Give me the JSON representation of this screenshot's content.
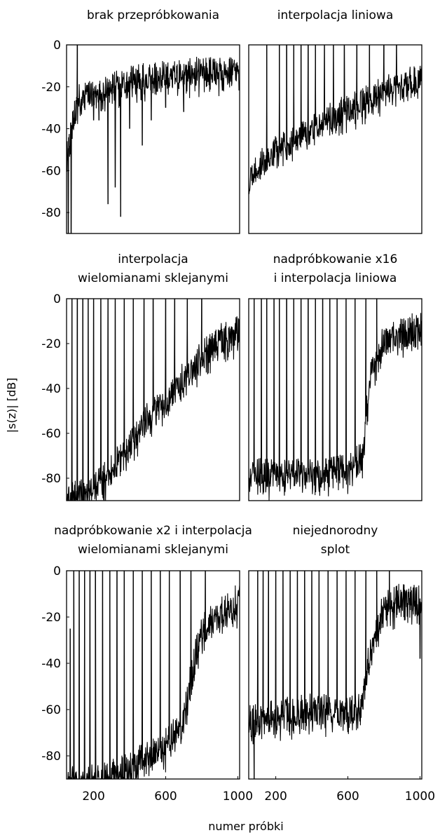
{
  "figure": {
    "ylabel": "|s(z)| [dB]",
    "xlabel": "numer próbki"
  },
  "chart_data": [
    {
      "type": "line",
      "title_lines": [
        "brak przepróbkowania"
      ],
      "ylim": [
        -90,
        0
      ],
      "yticks": [
        0,
        -20,
        -40,
        -60,
        -80
      ],
      "xlim": [
        50,
        1010
      ],
      "xticks": [],
      "envelope_x": [
        50,
        80,
        120,
        200,
        300,
        400,
        500,
        600,
        700,
        800,
        900,
        1010
      ],
      "envelope_y": [
        -55,
        -38,
        -25,
        -22,
        -20,
        -17,
        -15,
        -14,
        -14,
        -12,
        -12,
        -12
      ],
      "spikes": [
        {
          "x": 60,
          "y": -90
        },
        {
          "x": 75,
          "y": -90
        },
        {
          "x": 90,
          "y": -38
        },
        {
          "x": 110,
          "y": 0
        },
        {
          "x": 150,
          "y": -30
        },
        {
          "x": 200,
          "y": -36
        },
        {
          "x": 230,
          "y": -36
        },
        {
          "x": 280,
          "y": -76
        },
        {
          "x": 320,
          "y": -68
        },
        {
          "x": 350,
          "y": -82
        },
        {
          "x": 400,
          "y": -40
        },
        {
          "x": 470,
          "y": -48
        },
        {
          "x": 520,
          "y": -36
        },
        {
          "x": 600,
          "y": -30
        },
        {
          "x": 700,
          "y": -32
        }
      ]
    },
    {
      "type": "line",
      "title_lines": [
        "interpolacja liniowa"
      ],
      "ylim": [
        -90,
        0
      ],
      "yticks": [],
      "xlim": [
        50,
        1010
      ],
      "xticks": [],
      "envelope_x": [
        50,
        100,
        200,
        300,
        400,
        500,
        600,
        700,
        800,
        900,
        1010
      ],
      "envelope_y": [
        -63,
        -57,
        -50,
        -45,
        -40,
        -34,
        -30,
        -26,
        -22,
        -18,
        -15
      ],
      "spikes": [
        {
          "x": 150,
          "y": 0
        },
        {
          "x": 220,
          "y": 0
        },
        {
          "x": 260,
          "y": 0
        },
        {
          "x": 300,
          "y": 0
        },
        {
          "x": 340,
          "y": 0
        },
        {
          "x": 380,
          "y": 0
        },
        {
          "x": 420,
          "y": 0
        },
        {
          "x": 470,
          "y": 0
        },
        {
          "x": 520,
          "y": 0
        },
        {
          "x": 580,
          "y": 0
        },
        {
          "x": 650,
          "y": 0
        },
        {
          "x": 720,
          "y": 0
        },
        {
          "x": 800,
          "y": 0
        },
        {
          "x": 870,
          "y": 0
        }
      ]
    },
    {
      "type": "line",
      "title_lines": [
        "interpolacja",
        "wielomianami sklejanymi"
      ],
      "ylim": [
        -90,
        0
      ],
      "yticks": [
        0,
        -20,
        -40,
        -60,
        -80
      ],
      "xlim": [
        50,
        1010
      ],
      "xticks": [],
      "envelope_x": [
        50,
        100,
        200,
        300,
        400,
        500,
        600,
        700,
        800,
        900,
        1010
      ],
      "envelope_y": [
        -90,
        -88,
        -85,
        -75,
        -65,
        -52,
        -45,
        -35,
        -25,
        -18,
        -14
      ],
      "spikes": [
        {
          "x": 60,
          "y": -90
        },
        {
          "x": 80,
          "y": 0
        },
        {
          "x": 110,
          "y": 0
        },
        {
          "x": 140,
          "y": 0
        },
        {
          "x": 170,
          "y": 0
        },
        {
          "x": 200,
          "y": 0
        },
        {
          "x": 240,
          "y": 0
        },
        {
          "x": 280,
          "y": 0
        },
        {
          "x": 320,
          "y": 0
        },
        {
          "x": 370,
          "y": 0
        },
        {
          "x": 420,
          "y": 0
        },
        {
          "x": 480,
          "y": 0
        },
        {
          "x": 530,
          "y": 0
        },
        {
          "x": 600,
          "y": 0
        },
        {
          "x": 650,
          "y": 0
        },
        {
          "x": 720,
          "y": 0
        },
        {
          "x": 800,
          "y": 0
        }
      ]
    },
    {
      "type": "line",
      "title_lines": [
        "nadpróbkowanie x16",
        "i interpolacja liniowa"
      ],
      "ylim": [
        -90,
        0
      ],
      "yticks": [],
      "xlim": [
        50,
        1010
      ],
      "xticks": [],
      "envelope_x": [
        50,
        200,
        400,
        600,
        680,
        720,
        800,
        900,
        1010
      ],
      "envelope_y": [
        -78,
        -78,
        -78,
        -76,
        -70,
        -35,
        -18,
        -15,
        -12
      ],
      "spikes": [
        {
          "x": 80,
          "y": 0
        },
        {
          "x": 120,
          "y": 0
        },
        {
          "x": 150,
          "y": 0
        },
        {
          "x": 190,
          "y": 0
        },
        {
          "x": 220,
          "y": 0
        },
        {
          "x": 260,
          "y": 0
        },
        {
          "x": 300,
          "y": 0
        },
        {
          "x": 340,
          "y": 0
        },
        {
          "x": 380,
          "y": 0
        },
        {
          "x": 420,
          "y": 0
        },
        {
          "x": 460,
          "y": 0
        },
        {
          "x": 500,
          "y": 0
        },
        {
          "x": 540,
          "y": 0
        },
        {
          "x": 590,
          "y": 0
        },
        {
          "x": 640,
          "y": 0
        },
        {
          "x": 700,
          "y": 0
        },
        {
          "x": 760,
          "y": 0
        }
      ]
    },
    {
      "type": "line",
      "title_lines": [
        "nadpróbkowanie x2 i interpolacja",
        "wielomianami sklejanymi"
      ],
      "ylim": [
        -90,
        0
      ],
      "yticks": [
        0,
        -20,
        -40,
        -60,
        -80
      ],
      "xlim": [
        50,
        1010
      ],
      "xticks": [
        200,
        600,
        1000
      ],
      "envelope_x": [
        50,
        100,
        200,
        300,
        400,
        500,
        600,
        700,
        750,
        800,
        900,
        1010
      ],
      "envelope_y": [
        -90,
        -90,
        -90,
        -88,
        -85,
        -80,
        -75,
        -65,
        -40,
        -25,
        -18,
        -12
      ],
      "spikes": [
        {
          "x": 70,
          "y": -25
        },
        {
          "x": 90,
          "y": 0
        },
        {
          "x": 120,
          "y": 0
        },
        {
          "x": 150,
          "y": 0
        },
        {
          "x": 180,
          "y": 0
        },
        {
          "x": 210,
          "y": 0
        },
        {
          "x": 250,
          "y": 0
        },
        {
          "x": 290,
          "y": 0
        },
        {
          "x": 330,
          "y": 0
        },
        {
          "x": 370,
          "y": 0
        },
        {
          "x": 420,
          "y": 0
        },
        {
          "x": 470,
          "y": 0
        },
        {
          "x": 520,
          "y": 0
        },
        {
          "x": 570,
          "y": 0
        },
        {
          "x": 620,
          "y": 0
        },
        {
          "x": 680,
          "y": 0
        },
        {
          "x": 740,
          "y": 0
        },
        {
          "x": 820,
          "y": 0
        }
      ]
    },
    {
      "type": "line",
      "title_lines": [
        "niejednorodny",
        "splot"
      ],
      "ylim": [
        -90,
        0
      ],
      "yticks": [],
      "xlim": [
        50,
        1010
      ],
      "xticks": [
        200,
        600,
        1000
      ],
      "envelope_x": [
        50,
        200,
        400,
        600,
        680,
        720,
        800,
        900,
        1010
      ],
      "envelope_y": [
        -65,
        -62,
        -60,
        -60,
        -58,
        -35,
        -15,
        -12,
        -12
      ],
      "spikes": [
        {
          "x": 80,
          "y": -90
        },
        {
          "x": 100,
          "y": 0
        },
        {
          "x": 130,
          "y": 0
        },
        {
          "x": 160,
          "y": 0
        },
        {
          "x": 200,
          "y": 0
        },
        {
          "x": 240,
          "y": 0
        },
        {
          "x": 280,
          "y": 0
        },
        {
          "x": 320,
          "y": 0
        },
        {
          "x": 360,
          "y": 0
        },
        {
          "x": 400,
          "y": 0
        },
        {
          "x": 440,
          "y": 0
        },
        {
          "x": 490,
          "y": 0
        },
        {
          "x": 540,
          "y": 0
        },
        {
          "x": 590,
          "y": 0
        },
        {
          "x": 640,
          "y": 0
        },
        {
          "x": 700,
          "y": 0
        },
        {
          "x": 760,
          "y": 0
        },
        {
          "x": 830,
          "y": 0
        },
        {
          "x": 1000,
          "y": -38
        }
      ]
    }
  ]
}
